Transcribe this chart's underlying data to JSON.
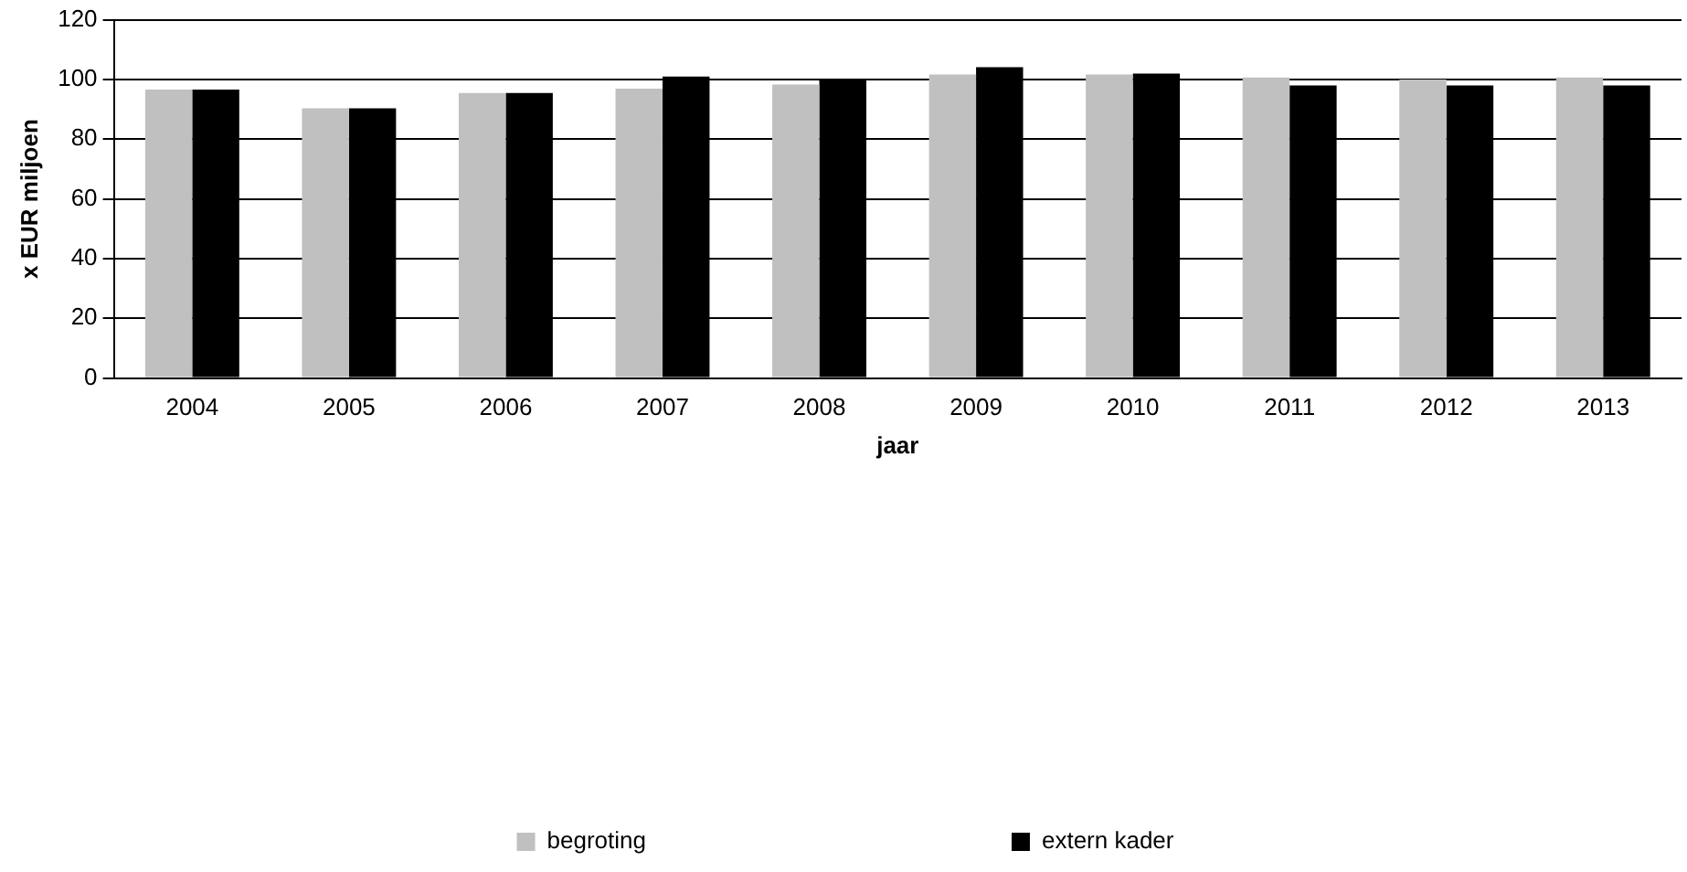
{
  "chart_data": {
    "type": "bar",
    "xlabel": "jaar",
    "ylabel": "x EUR miljoen",
    "categories": [
      "2004",
      "2005",
      "2006",
      "2007",
      "2008",
      "2009",
      "2010",
      "2011",
      "2012",
      "2013"
    ],
    "series": [
      {
        "name": "begroting",
        "color": "#c0c0c0",
        "values": [
          96.6,
          90.3,
          95.5,
          96.9,
          98.3,
          101.7,
          101.7,
          100.7,
          100,
          100.7
        ]
      },
      {
        "name": "extern kader",
        "color": "#000000",
        "values": [
          96.6,
          90.3,
          95.5,
          101,
          100,
          104.1,
          102,
          98,
          98,
          98
        ]
      }
    ],
    "ylim": [
      0,
      120
    ],
    "yticks": [
      0,
      20,
      40,
      60,
      80,
      100,
      120
    ],
    "grid": "y",
    "legend": "bottom"
  }
}
